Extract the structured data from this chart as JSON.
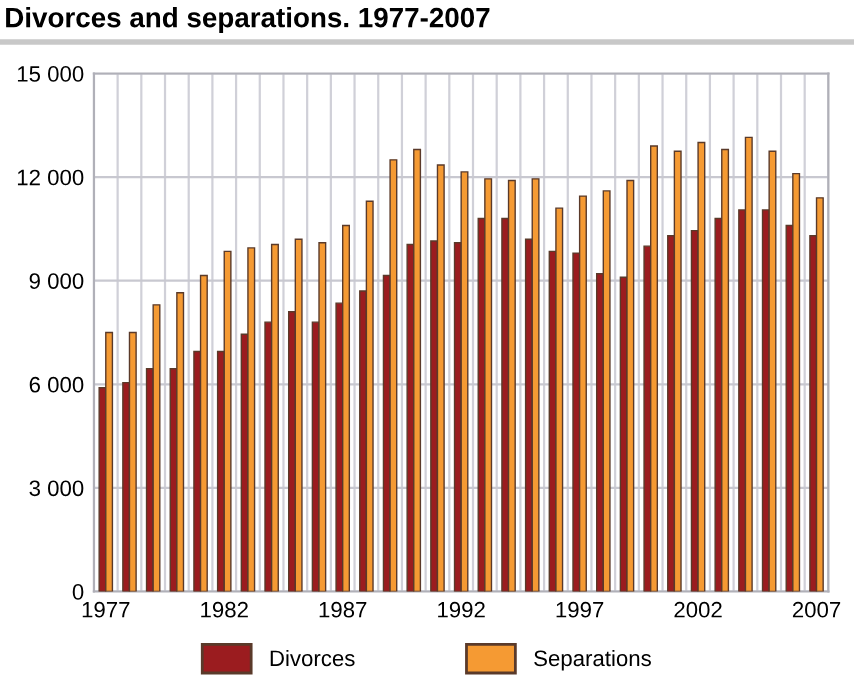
{
  "chart_data": {
    "type": "bar",
    "title": "Divorces and separations. 1977-2007",
    "categories": [
      "1977",
      null,
      null,
      null,
      null,
      "1982",
      null,
      null,
      null,
      null,
      "1987",
      null,
      null,
      null,
      null,
      "1992",
      null,
      null,
      null,
      null,
      "1997",
      null,
      null,
      null,
      null,
      "2002",
      null,
      null,
      null,
      null,
      "2007"
    ],
    "series": [
      {
        "name": "Divorces",
        "color": "#9b1c1f",
        "values": [
          5900,
          6050,
          6450,
          6450,
          6950,
          6950,
          7450,
          7800,
          8100,
          7800,
          8350,
          8700,
          9150,
          10050,
          10150,
          10100,
          10800,
          10800,
          10200,
          9850,
          9800,
          9200,
          9100,
          10000,
          10300,
          10450,
          10800,
          11050,
          11050,
          10600,
          10300
        ]
      },
      {
        "name": "Separations",
        "color": "#f59a33",
        "values": [
          7500,
          7500,
          8300,
          8650,
          9150,
          9850,
          9950,
          10050,
          10200,
          10100,
          10600,
          11300,
          12500,
          12800,
          12350,
          12150,
          11950,
          11900,
          11950,
          11100,
          11450,
          11600,
          11900,
          12900,
          12750,
          13000,
          12800,
          13150,
          12750,
          12100,
          11400
        ]
      }
    ],
    "ylim": [
      0,
      15000
    ],
    "yticks": [
      {
        "value": 0,
        "label": "0"
      },
      {
        "value": 3000,
        "label": "3 000"
      },
      {
        "value": 6000,
        "label": "6 000"
      },
      {
        "value": 9000,
        "label": "9 000"
      },
      {
        "value": 12000,
        "label": "12 000"
      },
      {
        "value": 15000,
        "label": "15 000"
      }
    ],
    "grid": true,
    "legend": "bottom"
  }
}
